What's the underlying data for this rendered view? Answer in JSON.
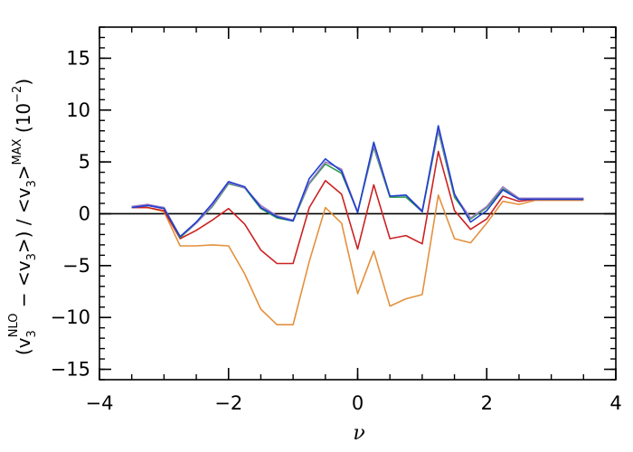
{
  "chart_data": {
    "type": "line",
    "xlabel": "ν",
    "ylabel_parts": {
      "lp": "(v",
      "s1": "3",
      "sup1": "NLO",
      "mid": " − <v",
      "s2": "3",
      "mid2": ">) / <v",
      "s3": "3",
      "mid3": ">",
      "sup2": "MAX",
      "tail": " (10",
      "exp": "−2",
      "end": ")"
    },
    "xlim": [
      -4,
      4
    ],
    "ylim": [
      -16,
      18
    ],
    "xticks": [
      -4,
      -2,
      0,
      2,
      4
    ],
    "xtick_labels": [
      "−4",
      "−2",
      "0",
      "2",
      "4"
    ],
    "yticks": [
      -15,
      -10,
      -5,
      0,
      5,
      10,
      15
    ],
    "ytick_labels": [
      "−15",
      "−10",
      "−5",
      "0",
      "5",
      "10",
      "15"
    ],
    "x_minor_step": 0.5,
    "y_minor_step": 1,
    "hline": 0,
    "x": [
      -3.5,
      -3.25,
      -3.0,
      -2.75,
      -2.5,
      -2.25,
      -2.0,
      -1.75,
      -1.5,
      -1.25,
      -1.0,
      -0.75,
      -0.5,
      -0.25,
      0.0,
      0.25,
      0.5,
      0.75,
      1.0,
      1.25,
      1.5,
      1.75,
      2.0,
      2.25,
      2.5,
      2.75,
      3.0,
      3.25,
      3.5
    ],
    "series": [
      {
        "color": "#e4913d",
        "values": [
          0.6,
          0.6,
          0.2,
          -3.1,
          -3.1,
          -3.0,
          -3.1,
          -5.8,
          -9.2,
          -10.7,
          -10.7,
          -4.6,
          0.6,
          -0.9,
          -7.7,
          -3.6,
          -8.9,
          -8.2,
          -7.8,
          1.8,
          -2.4,
          -2.8,
          -0.9,
          1.2,
          0.9,
          1.3,
          1.3,
          1.3,
          1.3
        ]
      },
      {
        "color": "#cc2222",
        "values": [
          0.6,
          0.6,
          0.3,
          -2.4,
          -1.6,
          -0.6,
          0.5,
          -1.0,
          -3.5,
          -4.8,
          -4.8,
          0.6,
          3.2,
          1.9,
          -3.4,
          2.8,
          -2.4,
          -2.1,
          -2.9,
          6.0,
          0.3,
          -1.5,
          -0.5,
          1.7,
          1.2,
          1.4,
          1.4,
          1.4,
          1.4
        ]
      },
      {
        "color": "#2a9a4a",
        "values": [
          0.7,
          0.8,
          0.6,
          -2.3,
          -0.9,
          0.7,
          2.9,
          2.5,
          0.5,
          -0.4,
          -0.7,
          2.9,
          4.8,
          3.9,
          0.2,
          6.4,
          1.6,
          1.6,
          0.2,
          8.0,
          1.6,
          -0.5,
          0.6,
          2.4,
          1.5,
          1.5,
          1.5,
          1.5,
          1.5
        ]
      },
      {
        "color": "#9e7bc4",
        "values": [
          0.7,
          0.9,
          0.6,
          -2.2,
          -0.9,
          0.8,
          3.0,
          2.5,
          0.8,
          -0.2,
          -0.6,
          3.0,
          5.0,
          4.3,
          0.2,
          6.6,
          1.7,
          1.8,
          0.3,
          8.2,
          1.8,
          -0.4,
          0.7,
          2.6,
          1.5,
          1.5,
          1.5,
          1.5,
          1.5
        ]
      },
      {
        "color": "#1e3fcf",
        "values": [
          0.6,
          0.8,
          0.5,
          -2.2,
          -0.8,
          1.0,
          3.1,
          2.6,
          0.6,
          -0.3,
          -0.7,
          3.4,
          5.3,
          4.1,
          0.1,
          6.9,
          1.7,
          1.8,
          0.2,
          8.5,
          1.9,
          -0.8,
          0.3,
          2.3,
          1.4,
          1.4,
          1.4,
          1.4,
          1.4
        ]
      }
    ]
  }
}
